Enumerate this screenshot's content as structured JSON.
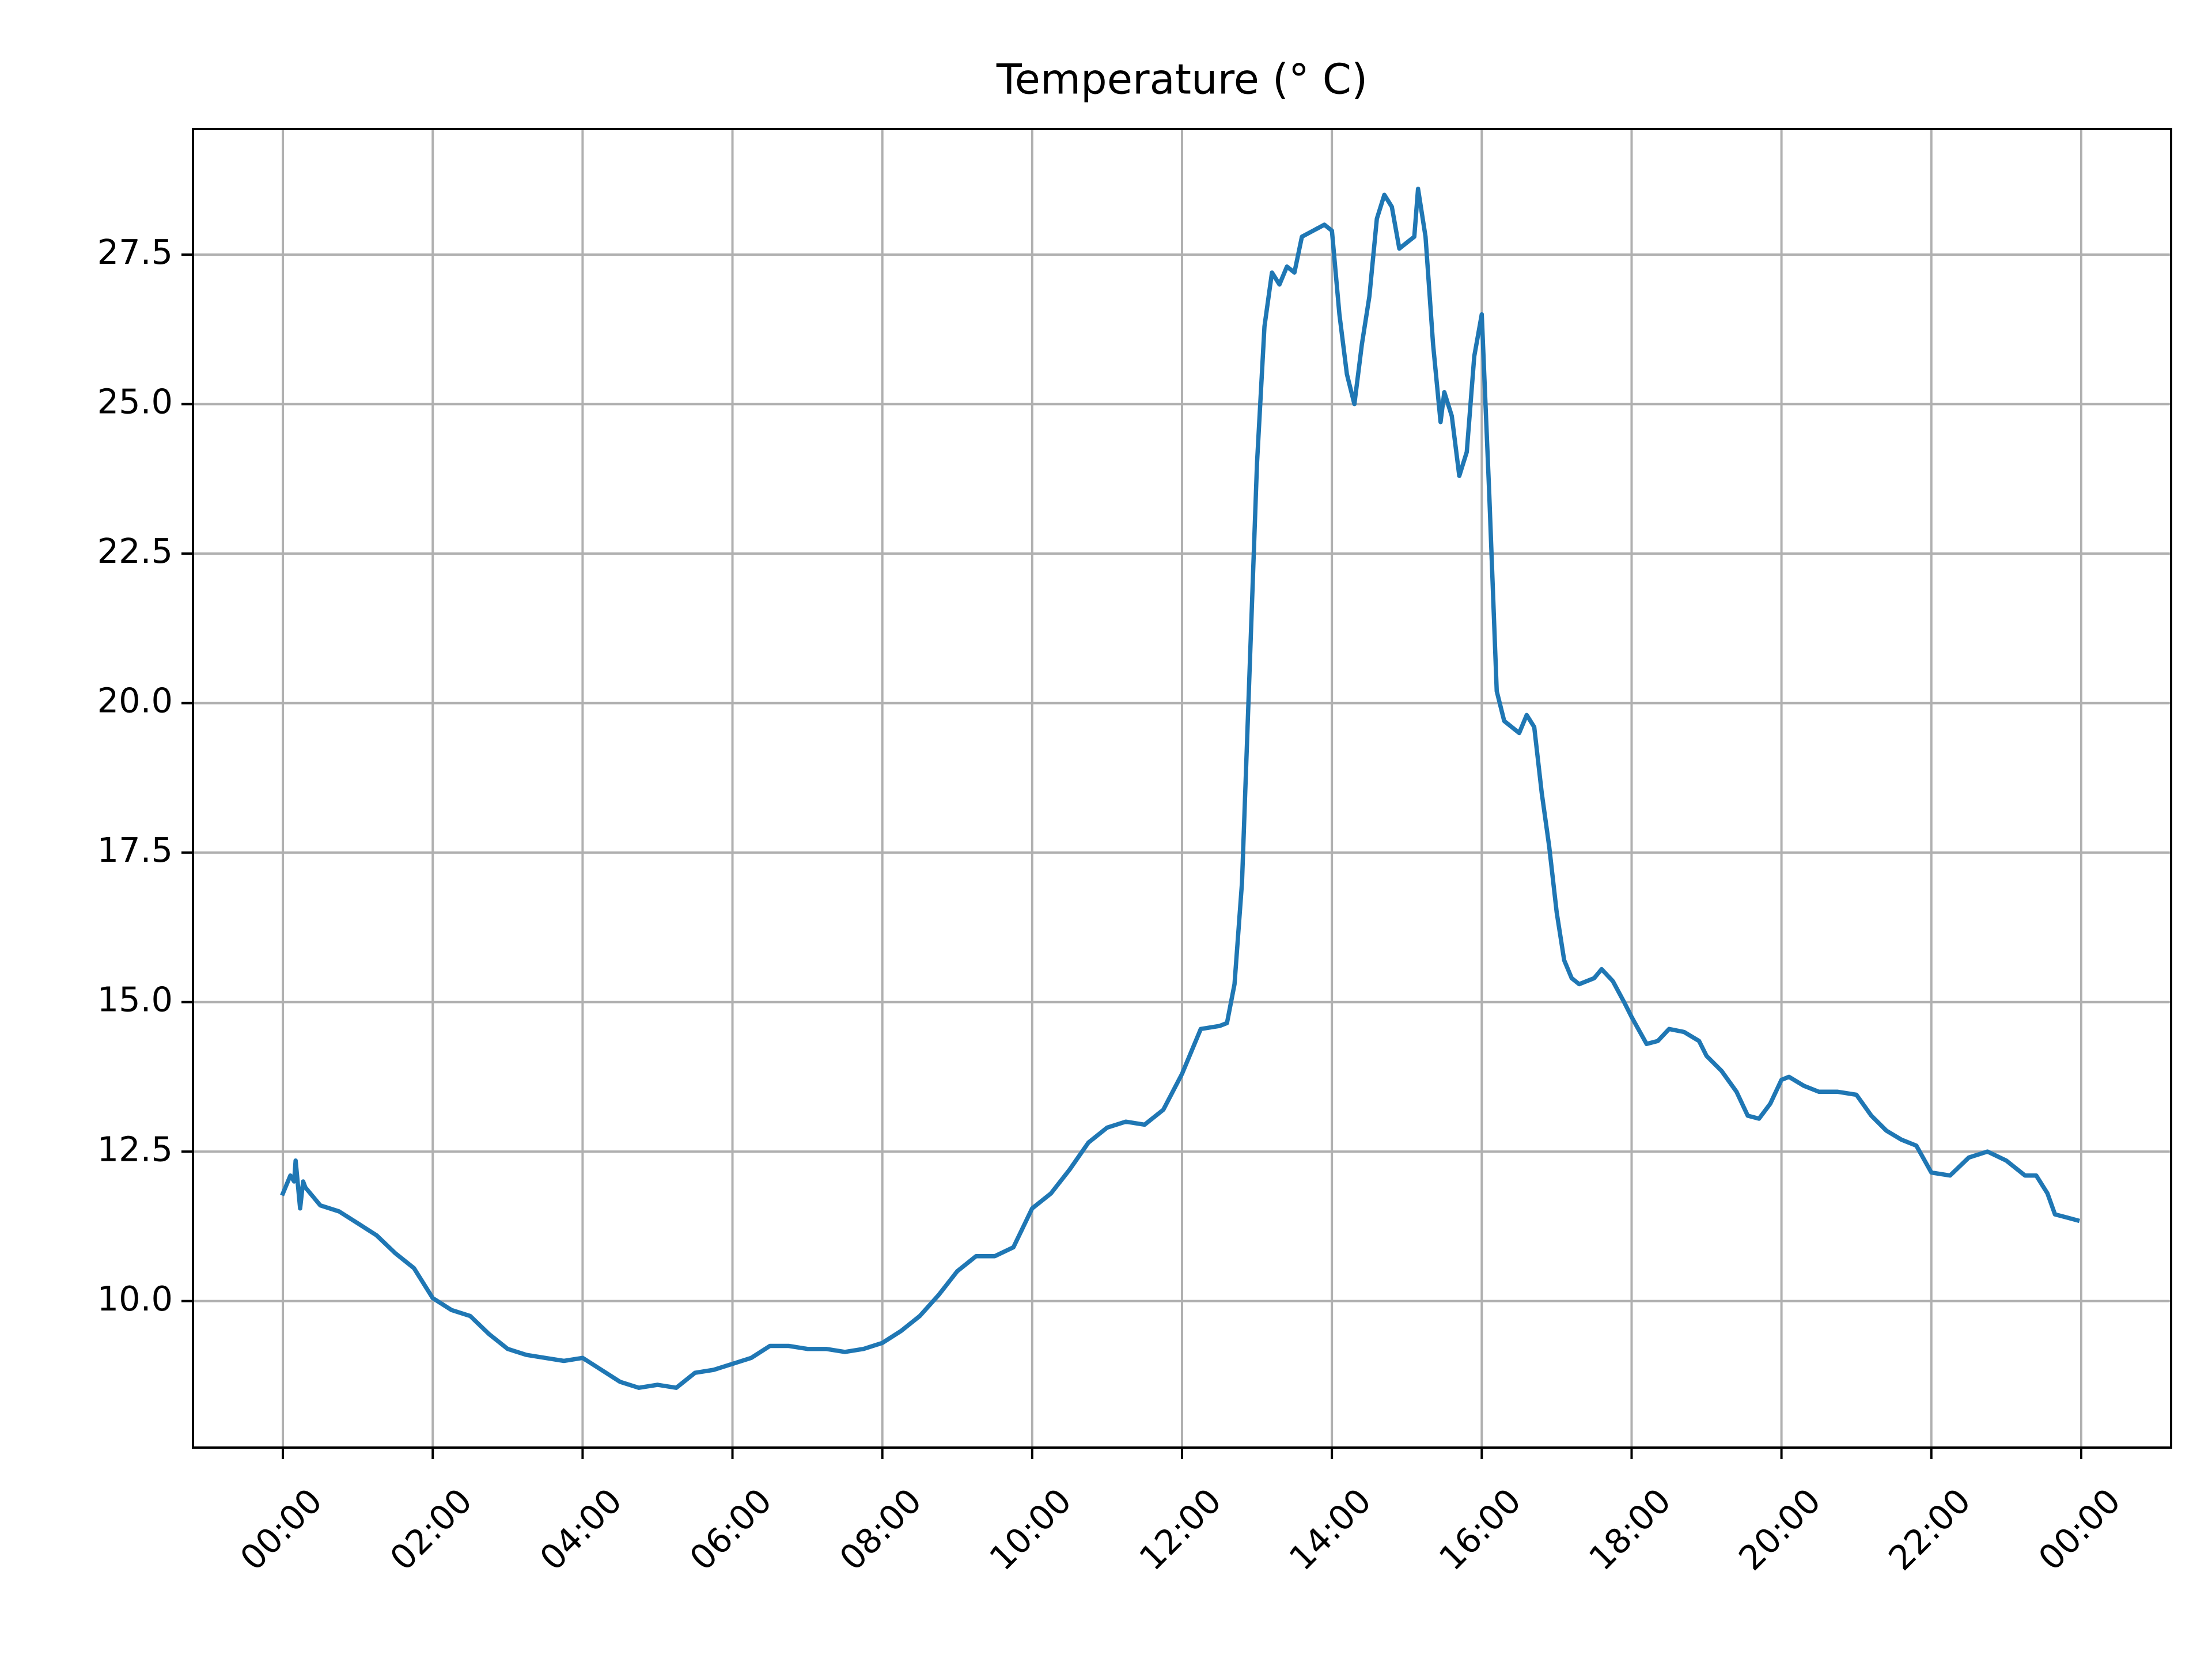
{
  "chart_data": {
    "type": "line",
    "title": "Temperature (° C)",
    "xlim": [
      -1.2,
      25.2
    ],
    "ylim": [
      7.55,
      29.6
    ],
    "xticks": [
      {
        "value": 0,
        "label": "00:00"
      },
      {
        "value": 2,
        "label": "02:00"
      },
      {
        "value": 4,
        "label": "04:00"
      },
      {
        "value": 6,
        "label": "06:00"
      },
      {
        "value": 8,
        "label": "08:00"
      },
      {
        "value": 10,
        "label": "10:00"
      },
      {
        "value": 12,
        "label": "12:00"
      },
      {
        "value": 14,
        "label": "14:00"
      },
      {
        "value": 16,
        "label": "16:00"
      },
      {
        "value": 18,
        "label": "18:00"
      },
      {
        "value": 20,
        "label": "20:00"
      },
      {
        "value": 22,
        "label": "22:00"
      },
      {
        "value": 24,
        "label": "00:00"
      }
    ],
    "yticks": [
      {
        "value": 10,
        "label": "10.0"
      },
      {
        "value": 12.5,
        "label": "12.5"
      },
      {
        "value": 15,
        "label": "15.0"
      },
      {
        "value": 17.5,
        "label": "17.5"
      },
      {
        "value": 20,
        "label": "20.0"
      },
      {
        "value": 22.5,
        "label": "22.5"
      },
      {
        "value": 25,
        "label": "25.0"
      },
      {
        "value": 27.5,
        "label": "27.5"
      }
    ],
    "grid": true,
    "series": [
      {
        "color": "#1f77b4",
        "x": [
          0,
          0.1,
          0.15,
          0.17,
          0.23,
          0.27,
          0.3,
          0.5,
          0.75,
          1.0,
          1.25,
          1.5,
          1.75,
          2.0,
          2.25,
          2.5,
          2.75,
          3.0,
          3.25,
          3.5,
          3.75,
          4.0,
          4.25,
          4.5,
          4.75,
          5.0,
          5.25,
          5.5,
          5.75,
          6.0,
          6.25,
          6.5,
          6.75,
          7.0,
          7.25,
          7.5,
          7.75,
          8.0,
          8.25,
          8.5,
          8.75,
          9.0,
          9.25,
          9.5,
          9.75,
          10.0,
          10.25,
          10.5,
          10.75,
          11.0,
          11.25,
          11.5,
          11.75,
          12.0,
          12.25,
          12.5,
          12.6,
          12.7,
          12.8,
          12.9,
          13.0,
          13.1,
          13.2,
          13.3,
          13.4,
          13.5,
          13.6,
          13.75,
          13.9,
          14.0,
          14.1,
          14.2,
          14.3,
          14.4,
          14.5,
          14.6,
          14.7,
          14.8,
          14.9,
          15.0,
          15.1,
          15.15,
          15.25,
          15.35,
          15.45,
          15.5,
          15.6,
          15.7,
          15.8,
          15.9,
          16.0,
          16.1,
          16.2,
          16.3,
          16.4,
          16.5,
          16.6,
          16.7,
          16.8,
          16.9,
          17.0,
          17.1,
          17.2,
          17.3,
          17.5,
          17.6,
          17.75,
          17.9,
          18.0,
          18.2,
          18.35,
          18.5,
          18.7,
          18.9,
          19.0,
          19.2,
          19.4,
          19.55,
          19.7,
          19.85,
          20.0,
          20.1,
          20.3,
          20.5,
          20.75,
          21.0,
          21.2,
          21.4,
          21.6,
          21.8,
          22.0,
          22.25,
          22.5,
          22.75,
          23.0,
          23.25,
          23.4,
          23.55,
          23.65,
          23.8,
          23.95
        ],
        "values": [
          11.8,
          12.1,
          12.0,
          12.35,
          11.55,
          12.0,
          11.9,
          11.6,
          11.5,
          11.3,
          11.1,
          10.8,
          10.55,
          10.05,
          9.85,
          9.75,
          9.45,
          9.2,
          9.1,
          9.05,
          9.0,
          9.05,
          8.85,
          8.65,
          8.55,
          8.6,
          8.55,
          8.8,
          8.85,
          8.95,
          9.05,
          9.25,
          9.25,
          9.2,
          9.2,
          9.15,
          9.2,
          9.3,
          9.5,
          9.75,
          10.1,
          10.5,
          10.75,
          10.75,
          10.9,
          11.55,
          11.8,
          12.2,
          12.65,
          12.9,
          13.0,
          12.95,
          13.2,
          13.8,
          14.55,
          14.6,
          14.65,
          15.3,
          17.0,
          20.5,
          24.0,
          26.3,
          27.2,
          27.0,
          27.3,
          27.2,
          27.8,
          27.9,
          28.0,
          27.9,
          26.5,
          25.5,
          25.0,
          26.0,
          26.8,
          28.1,
          28.5,
          28.3,
          27.6,
          27.7,
          27.8,
          28.6,
          27.8,
          26.0,
          24.7,
          25.2,
          24.8,
          23.8,
          24.2,
          25.8,
          26.5,
          23.5,
          20.2,
          19.7,
          19.6,
          19.5,
          19.8,
          19.6,
          18.5,
          17.6,
          16.5,
          15.7,
          15.4,
          15.3,
          15.4,
          15.55,
          15.35,
          15.0,
          14.75,
          14.3,
          14.35,
          14.55,
          14.5,
          14.35,
          14.1,
          13.85,
          13.5,
          13.1,
          13.05,
          13.3,
          13.7,
          13.75,
          13.6,
          13.5,
          13.5,
          13.45,
          13.1,
          12.85,
          12.7,
          12.6,
          12.15,
          12.1,
          12.4,
          12.5,
          12.35,
          12.1,
          12.1,
          11.8,
          11.45,
          11.4,
          11.35
        ]
      }
    ]
  }
}
